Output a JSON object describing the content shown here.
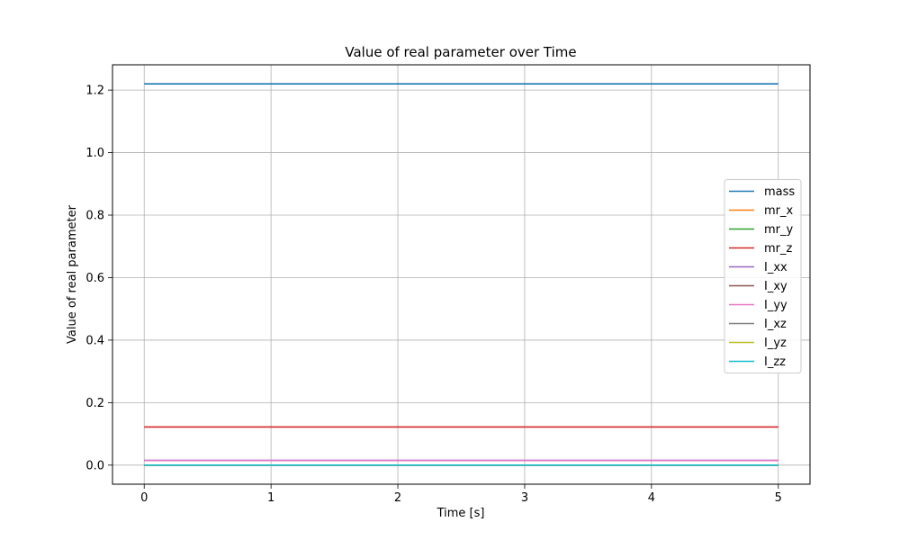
{
  "chart_data": {
    "type": "line",
    "title": "Value of real parameter over Time",
    "xlabel": "Time [s]",
    "ylabel": "Value of real parameter",
    "x": [
      0,
      5
    ],
    "xlim": [
      -0.25,
      5.25
    ],
    "ylim": [
      -0.061,
      1.281
    ],
    "xticks": [
      0,
      1,
      2,
      3,
      4,
      5
    ],
    "xtick_labels": [
      "0",
      "1",
      "2",
      "3",
      "4",
      "5"
    ],
    "yticks": [
      0.0,
      0.2,
      0.4,
      0.6,
      0.8,
      1.0,
      1.2
    ],
    "ytick_labels": [
      "0.0",
      "0.2",
      "0.4",
      "0.6",
      "0.8",
      "1.0",
      "1.2"
    ],
    "grid": true,
    "legend_position": "center-right",
    "series": [
      {
        "name": "mass",
        "color": "#1f77b4",
        "values": [
          1.22,
          1.22
        ]
      },
      {
        "name": "mr_x",
        "color": "#ff7f0e",
        "values": [
          0.0,
          0.0
        ]
      },
      {
        "name": "mr_y",
        "color": "#2ca02c",
        "values": [
          0.0,
          0.0
        ]
      },
      {
        "name": "mr_z",
        "color": "#d62728",
        "values": [
          0.122,
          0.122
        ]
      },
      {
        "name": "I_xx",
        "color": "#9467bd",
        "values": [
          0.015,
          0.015
        ]
      },
      {
        "name": "I_xy",
        "color": "#8c564b",
        "values": [
          0.0,
          0.0
        ]
      },
      {
        "name": "I_yy",
        "color": "#e377c2",
        "values": [
          0.015,
          0.015
        ]
      },
      {
        "name": "I_xz",
        "color": "#7f7f7f",
        "values": [
          0.0,
          0.0
        ]
      },
      {
        "name": "I_yz",
        "color": "#bcbd22",
        "values": [
          0.0,
          0.0
        ]
      },
      {
        "name": "I_zz",
        "color": "#17becf",
        "values": [
          0.0,
          0.0
        ]
      }
    ]
  }
}
